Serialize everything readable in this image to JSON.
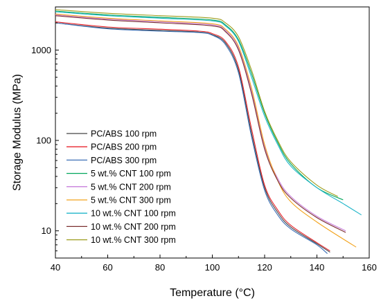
{
  "chart_data": {
    "type": "line",
    "xlabel": "Temperature (°C)",
    "ylabel": "Storage Modulus (MPa)",
    "xlim": [
      40,
      160
    ],
    "ylim": [
      5,
      3000
    ],
    "y_scale": "log",
    "x_ticks": [
      40,
      60,
      80,
      100,
      120,
      140,
      160
    ],
    "y_ticks": [
      {
        "value": 10,
        "label": "10"
      },
      {
        "value": 100,
        "label": "100"
      },
      {
        "value": 1000,
        "label": "1000"
      }
    ],
    "grid": false,
    "legend": "bottom-left",
    "series": [
      {
        "name": "PC/ABS 100 rpm",
        "color": "#444444",
        "x": [
          40,
          60,
          80,
          95,
          100,
          105,
          110,
          115,
          120,
          125,
          130,
          140,
          145
        ],
        "y": [
          2000,
          1750,
          1650,
          1580,
          1480,
          1200,
          600,
          120,
          30,
          16,
          11,
          7.2,
          5.8
        ]
      },
      {
        "name": "PC/ABS 200 rpm",
        "color": "#e8232b",
        "x": [
          40,
          60,
          80,
          95,
          100,
          105,
          110,
          115,
          120,
          125,
          130,
          140,
          145
        ],
        "y": [
          2050,
          1800,
          1700,
          1620,
          1520,
          1250,
          650,
          135,
          32,
          17,
          11.5,
          7.4,
          6.0
        ]
      },
      {
        "name": "PC/ABS 300 rpm",
        "color": "#3b6fb6",
        "x": [
          40,
          60,
          80,
          95,
          100,
          105,
          110,
          115,
          120,
          125,
          130,
          140,
          144
        ],
        "y": [
          2000,
          1720,
          1620,
          1560,
          1460,
          1150,
          560,
          110,
          28,
          15,
          10.5,
          7.0,
          5.6
        ]
      },
      {
        "name": "5 wt.% CNT 100 rpm",
        "color": "#00a65a",
        "x": [
          40,
          60,
          80,
          100,
          105,
          110,
          115,
          120,
          125,
          130,
          140,
          150
        ],
        "y": [
          2700,
          2450,
          2300,
          2150,
          1900,
          1300,
          550,
          200,
          95,
          55,
          30,
          22
        ]
      },
      {
        "name": "5 wt.% CNT 200 rpm",
        "color": "#c77ddb",
        "x": [
          40,
          60,
          80,
          100,
          105,
          110,
          115,
          120,
          125,
          130,
          140,
          151
        ],
        "y": [
          2450,
          2200,
          2050,
          1900,
          1650,
          1050,
          350,
          85,
          38,
          24,
          14.5,
          10
        ]
      },
      {
        "name": "5 wt.% CNT 300 rpm",
        "color": "#f2a21b",
        "x": [
          40,
          60,
          80,
          100,
          105,
          110,
          115,
          120,
          125,
          130,
          140,
          155
        ],
        "y": [
          2500,
          2250,
          2100,
          1950,
          1700,
          1100,
          380,
          90,
          36,
          21,
          12.5,
          6.6
        ]
      },
      {
        "name": "10 wt.% CNT 100 rpm",
        "color": "#1fb5c9",
        "x": [
          40,
          60,
          80,
          100,
          105,
          110,
          115,
          120,
          125,
          130,
          140,
          150,
          157
        ],
        "y": [
          2650,
          2400,
          2250,
          2100,
          1850,
          1250,
          500,
          185,
          90,
          52,
          30,
          20,
          15
        ]
      },
      {
        "name": "10 wt.% CNT 200 rpm",
        "color": "#7a2e2e",
        "x": [
          40,
          60,
          80,
          100,
          105,
          110,
          115,
          120,
          125,
          130,
          140,
          151
        ],
        "y": [
          2400,
          2150,
          2000,
          1850,
          1600,
          1000,
          330,
          80,
          36,
          23,
          14,
          9.6
        ]
      },
      {
        "name": "10 wt.% CNT 300 rpm",
        "color": "#9c9c1c",
        "x": [
          40,
          60,
          80,
          100,
          105,
          110,
          115,
          120,
          125,
          130,
          140,
          148
        ],
        "y": [
          2800,
          2550,
          2400,
          2250,
          2000,
          1400,
          600,
          210,
          100,
          58,
          32,
          24
        ]
      }
    ]
  }
}
